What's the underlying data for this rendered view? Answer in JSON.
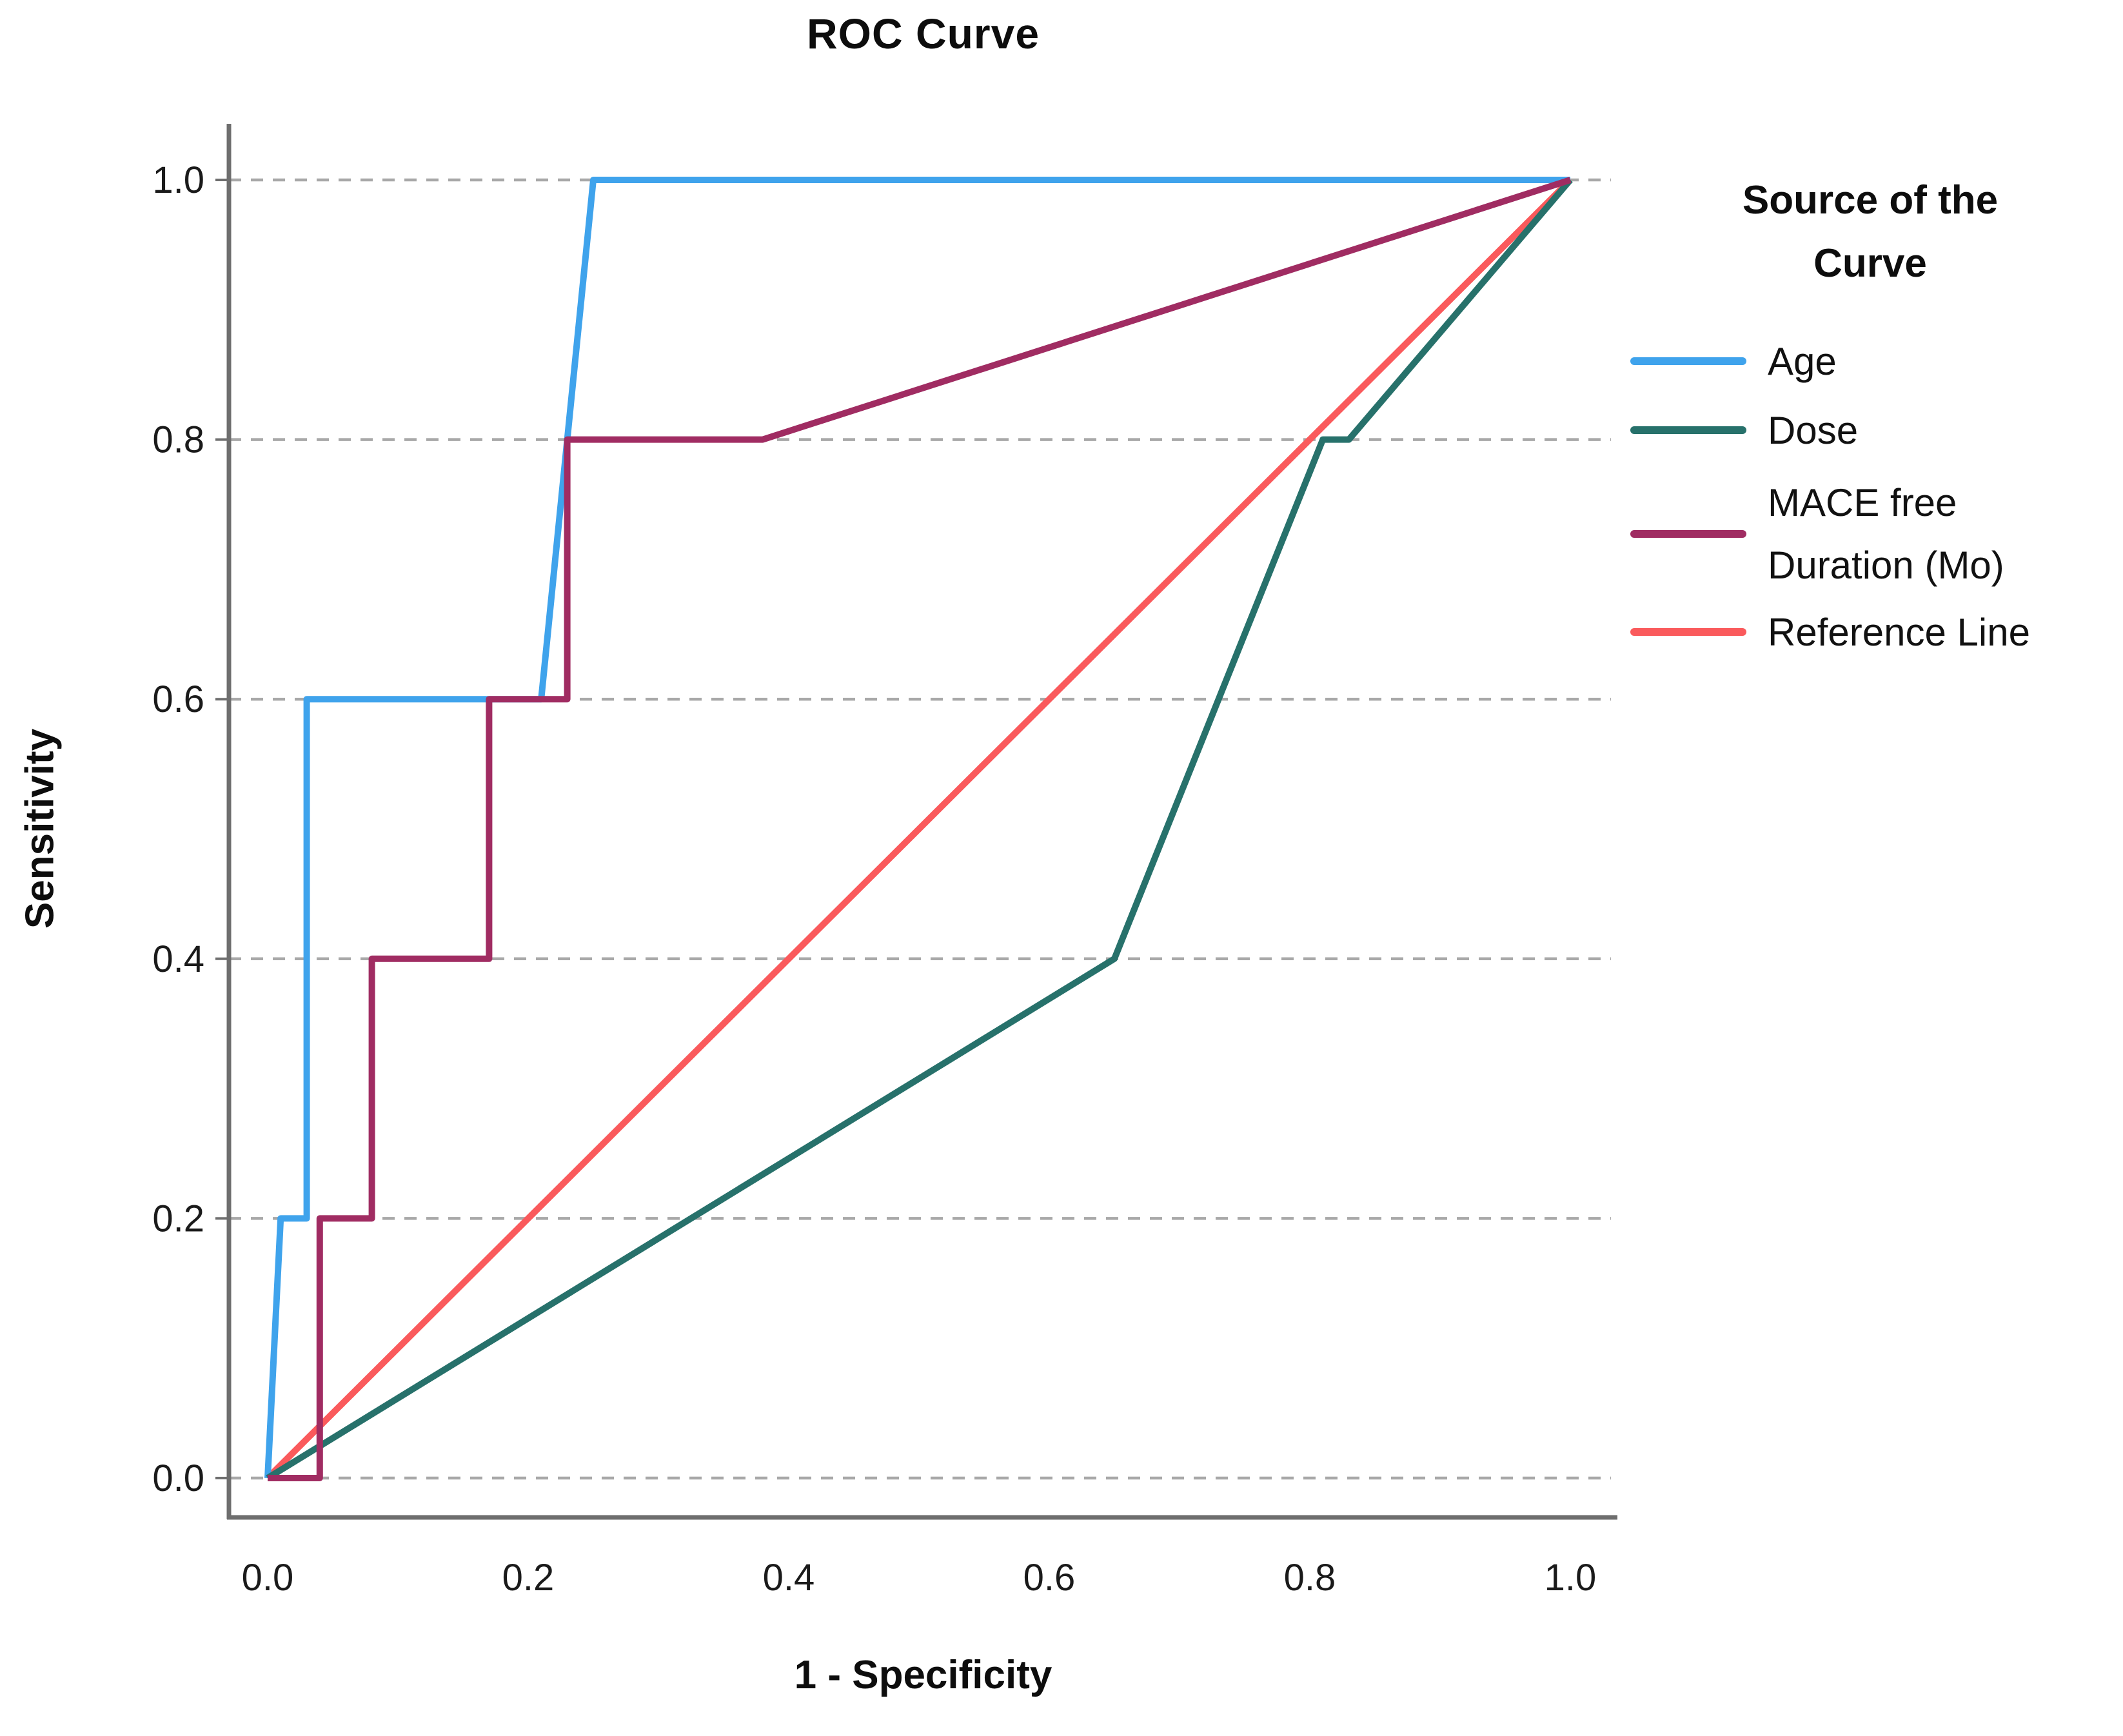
{
  "chart_data": {
    "type": "line",
    "title": "ROC Curve",
    "xlabel": "1 - Specificity",
    "ylabel": "Sensitivity",
    "xlim": [
      0.0,
      1.0
    ],
    "ylim": [
      0.0,
      1.0
    ],
    "xticks": [
      0.0,
      0.2,
      0.4,
      0.6,
      0.8,
      1.0
    ],
    "yticks": [
      0.0,
      0.2,
      0.4,
      0.6,
      0.8,
      1.0
    ],
    "x_tick_labels": [
      "0.0",
      "0.2",
      "0.4",
      "0.6",
      "0.8",
      "1.0"
    ],
    "y_tick_labels": [
      "0.0",
      "0.2",
      "0.4",
      "0.6",
      "0.8",
      "1.0"
    ],
    "grid": "horizontal-dashed",
    "legend_position": "right",
    "legend_title": "Source of the Curve",
    "series": [
      {
        "name": "Age",
        "color": "#3FA3EC",
        "points": [
          [
            0.0,
            0.0
          ],
          [
            0.01,
            0.2
          ],
          [
            0.03,
            0.2
          ],
          [
            0.03,
            0.6
          ],
          [
            0.21,
            0.6
          ],
          [
            0.25,
            1.0
          ],
          [
            1.0,
            1.0
          ]
        ]
      },
      {
        "name": "Dose",
        "color": "#27716B",
        "points": [
          [
            0.0,
            0.0
          ],
          [
            0.65,
            0.4
          ],
          [
            0.81,
            0.8
          ],
          [
            0.83,
            0.8
          ],
          [
            1.0,
            1.0
          ]
        ]
      },
      {
        "name": "MACE free Duration (Mo)",
        "color": "#A02C62",
        "points": [
          [
            0.0,
            0.0
          ],
          [
            0.04,
            0.0
          ],
          [
            0.04,
            0.2
          ],
          [
            0.08,
            0.2
          ],
          [
            0.08,
            0.4
          ],
          [
            0.17,
            0.4
          ],
          [
            0.17,
            0.6
          ],
          [
            0.23,
            0.6
          ],
          [
            0.23,
            0.8
          ],
          [
            0.38,
            0.8
          ],
          [
            1.0,
            1.0
          ]
        ]
      },
      {
        "name": "Reference Line",
        "color": "#FA5A5C",
        "points": [
          [
            0.0,
            0.0
          ],
          [
            1.0,
            1.0
          ]
        ]
      }
    ]
  },
  "legend": {
    "title_lines": [
      "Source of the",
      "Curve"
    ],
    "items": [
      {
        "label_lines": [
          "Age"
        ]
      },
      {
        "label_lines": [
          "Dose"
        ]
      },
      {
        "label_lines": [
          "MACE free",
          "Duration (Mo)"
        ]
      },
      {
        "label_lines": [
          "Reference Line"
        ]
      }
    ]
  },
  "colors": {
    "gridline": "#A8A8A8",
    "axis": "#6E6E6E",
    "text": "#111111"
  }
}
